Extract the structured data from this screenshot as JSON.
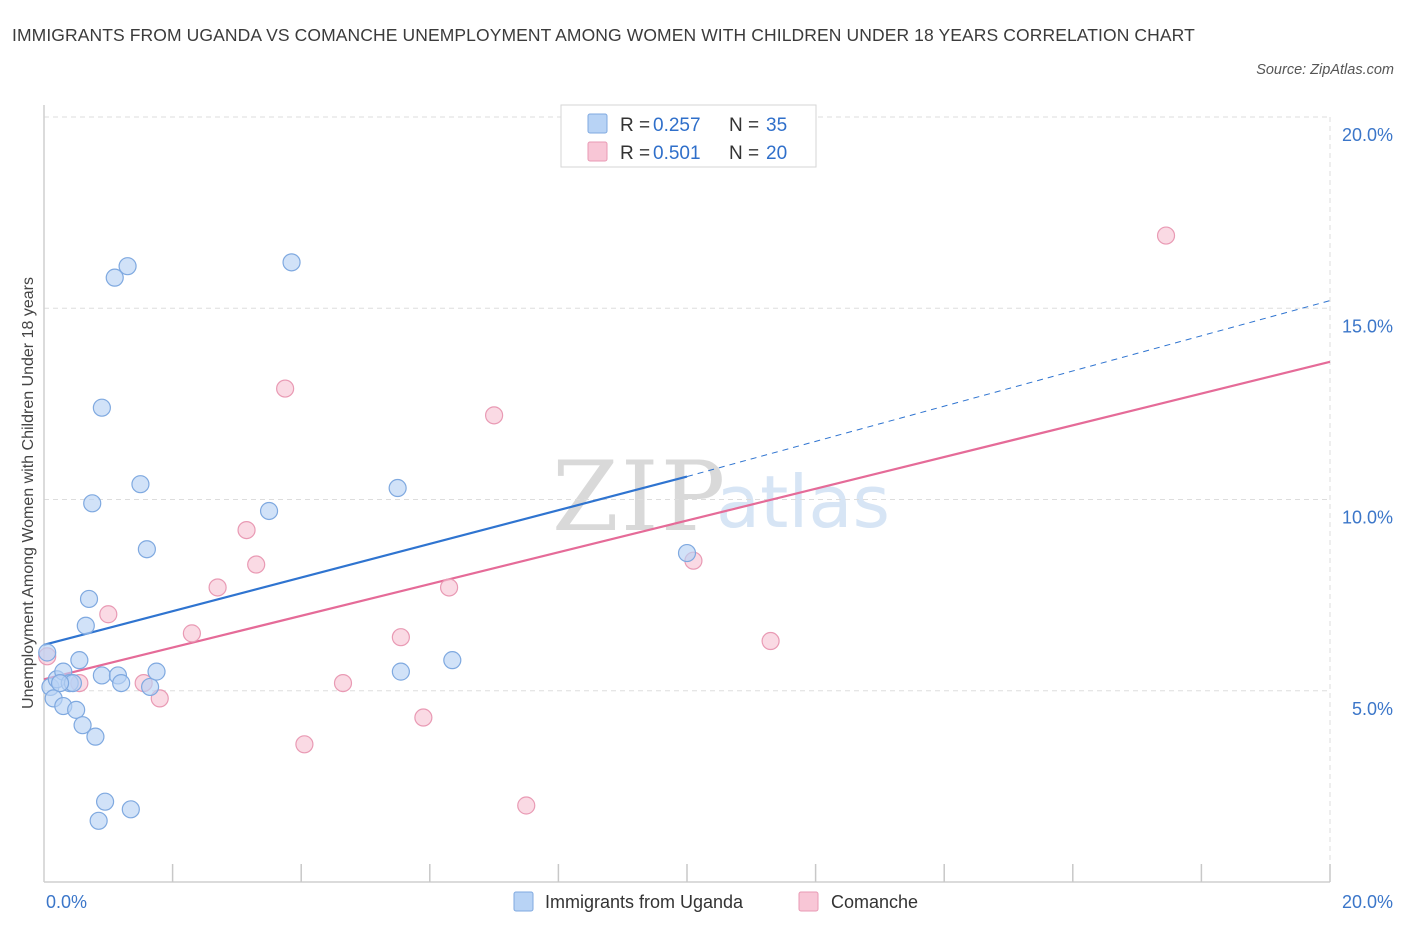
{
  "header": {
    "title": "IMMIGRANTS FROM UGANDA VS COMANCHE UNEMPLOYMENT AMONG WOMEN WITH CHILDREN UNDER 18 YEARS CORRELATION CHART",
    "source": "Source: ZipAtlas.com"
  },
  "watermark": {
    "zip": "ZIP",
    "atlas": "atlas"
  },
  "colors": {
    "blue_fill": "#b8d3f5",
    "blue_stroke": "#7fa9e0",
    "blue_line": "#2f74d0",
    "pink_fill": "#f8c6d6",
    "pink_stroke": "#e99ab4",
    "pink_line": "#e56b98",
    "axis_label": "#3b76c9",
    "grid": "#dddddd"
  },
  "legend": {
    "r_label": "R = ",
    "n_label": "N = ",
    "entries": [
      {
        "r": "0.257",
        "n": "35"
      },
      {
        "r": "0.501",
        "n": "20"
      }
    ]
  },
  "chart_data": {
    "type": "scatter",
    "title": "IMMIGRANTS FROM UGANDA VS COMANCHE UNEMPLOYMENT AMONG WOMEN WITH CHILDREN UNDER 18 YEARS CORRELATION CHART",
    "xlabel": "",
    "ylabel": "Unemployment Among Women with Children Under 18 years",
    "xlim": [
      0,
      20
    ],
    "ylim": [
      0,
      20
    ],
    "x_tick_labels": [
      "0.0%",
      "20.0%"
    ],
    "y_tick_labels": [
      "5.0%",
      "10.0%",
      "15.0%",
      "20.0%"
    ],
    "y_ticks": [
      5,
      10,
      15,
      20
    ],
    "grid": true,
    "legend_position": "top-center",
    "series": [
      {
        "name": "Immigrants from Uganda",
        "color": "#b8d3f5",
        "points": [
          [
            0.05,
            6.0
          ],
          [
            0.1,
            5.1
          ],
          [
            0.15,
            4.8
          ],
          [
            0.2,
            5.3
          ],
          [
            0.3,
            5.5
          ],
          [
            0.3,
            4.6
          ],
          [
            0.4,
            5.2
          ],
          [
            0.45,
            5.2
          ],
          [
            0.5,
            4.5
          ],
          [
            0.55,
            5.8
          ],
          [
            0.6,
            4.1
          ],
          [
            0.65,
            6.7
          ],
          [
            0.7,
            7.4
          ],
          [
            0.75,
            9.9
          ],
          [
            0.8,
            3.8
          ],
          [
            0.85,
            1.6
          ],
          [
            0.9,
            12.4
          ],
          [
            0.9,
            5.4
          ],
          [
            0.95,
            2.1
          ],
          [
            1.1,
            15.8
          ],
          [
            1.15,
            5.4
          ],
          [
            1.2,
            5.2
          ],
          [
            1.3,
            16.1
          ],
          [
            1.35,
            1.9
          ],
          [
            1.5,
            10.4
          ],
          [
            1.6,
            8.7
          ],
          [
            1.65,
            5.1
          ],
          [
            1.75,
            5.5
          ],
          [
            3.5,
            9.7
          ],
          [
            3.85,
            16.2
          ],
          [
            5.5,
            10.3
          ],
          [
            5.55,
            5.5
          ],
          [
            6.35,
            5.8
          ],
          [
            10.0,
            8.6
          ],
          [
            0.25,
            5.2
          ]
        ]
      },
      {
        "name": "Comanche",
        "color": "#f8c6d6",
        "points": [
          [
            0.05,
            5.9
          ],
          [
            0.55,
            5.2
          ],
          [
            1.0,
            7.0
          ],
          [
            1.55,
            5.2
          ],
          [
            1.8,
            4.8
          ],
          [
            2.3,
            6.5
          ],
          [
            2.7,
            7.7
          ],
          [
            3.15,
            9.2
          ],
          [
            3.3,
            8.3
          ],
          [
            3.75,
            12.9
          ],
          [
            4.05,
            3.6
          ],
          [
            4.65,
            5.2
          ],
          [
            5.55,
            6.4
          ],
          [
            5.9,
            4.3
          ],
          [
            6.3,
            7.7
          ],
          [
            7.0,
            12.2
          ],
          [
            7.5,
            2.0
          ],
          [
            10.1,
            8.4
          ],
          [
            11.3,
            6.3
          ],
          [
            17.45,
            16.9
          ]
        ]
      }
    ],
    "trendlines": [
      {
        "series": "Immigrants from Uganda",
        "x": [
          0,
          10.0
        ],
        "y": [
          6.2,
          10.6
        ],
        "dashed_extension": {
          "x": [
            10.0,
            20.0
          ],
          "y": [
            10.6,
            15.2
          ]
        }
      },
      {
        "series": "Comanche",
        "x": [
          0,
          20.0
        ],
        "y": [
          5.3,
          13.6
        ]
      }
    ]
  }
}
